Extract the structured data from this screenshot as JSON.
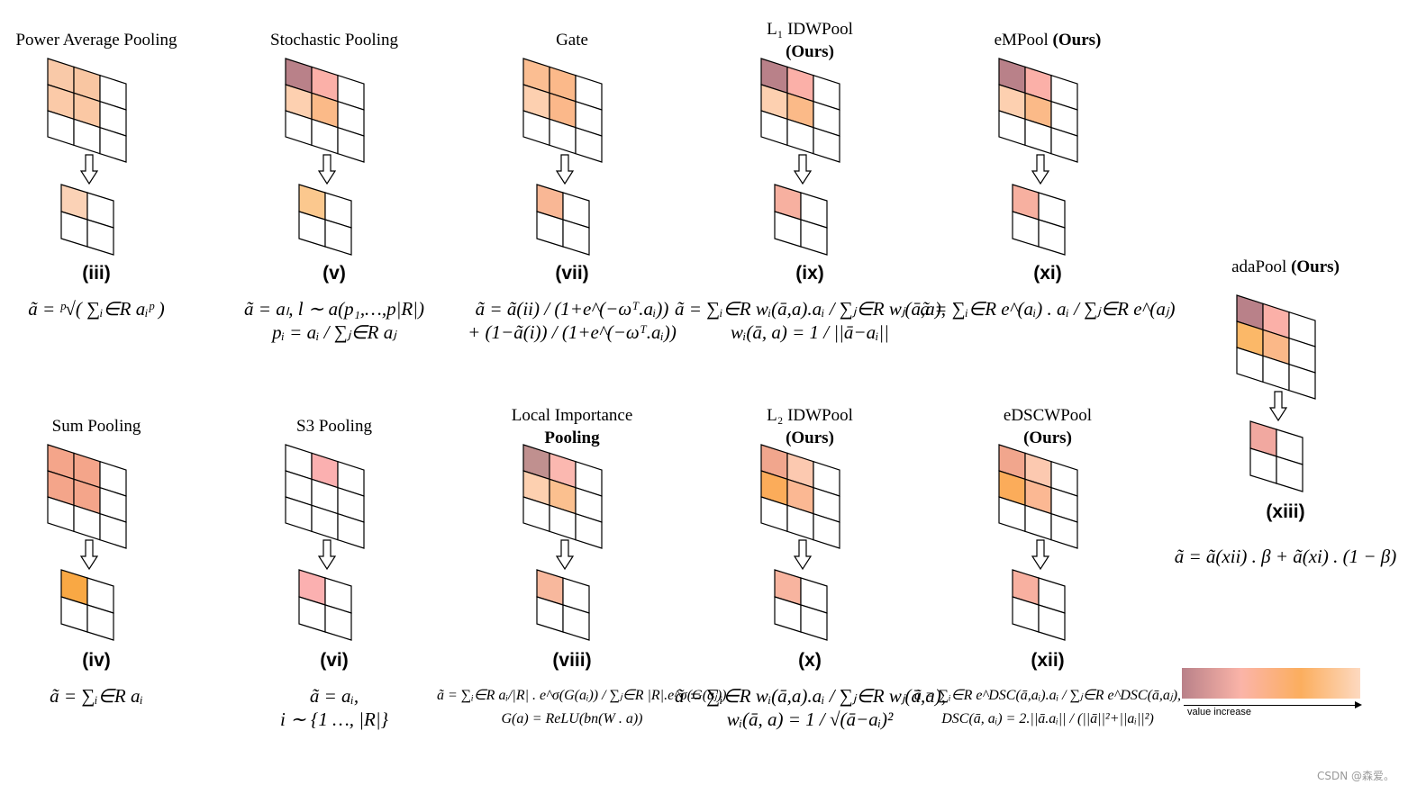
{
  "panels": [
    {
      "id": "iii",
      "title": "Power Average Pooling",
      "title2": "",
      "label": "(iii)",
      "big": [
        "#f9c9a8",
        "#f9c6a2",
        "#fff",
        "#fbcaa8",
        "#fbc8a4",
        "#fff",
        "#fff",
        "#fff",
        "#fff"
      ],
      "small": [
        "#fbd2b6",
        "#fff",
        "#fff",
        "#fff"
      ],
      "formula": [
        "ã = ᵖ√( ∑ᵢ∈R aᵢᵖ )"
      ]
    },
    {
      "id": "v",
      "title": "Stochastic Pooling",
      "title2": "",
      "label": "(v)",
      "big": [
        "#b98189",
        "#fbb0a8",
        "#fff",
        "#fdd0b0",
        "#fbba88",
        "#fff",
        "#fff",
        "#fff",
        "#fff"
      ],
      "small": [
        "#fbc88e",
        "#fff",
        "#fff",
        "#fff"
      ],
      "formula": [
        "ã = aₗ,  l ∼ a(p₁,…,p|R|)",
        "pᵢ = aᵢ / ∑ⱼ∈R aⱼ"
      ]
    },
    {
      "id": "vii",
      "title": "Gate",
      "title2": "",
      "label": "(vii)",
      "big": [
        "#fbbe92",
        "#fbb98a",
        "#fff",
        "#fdd0b0",
        "#fbb88a",
        "#fff",
        "#fff",
        "#fff",
        "#fff"
      ],
      "small": [
        "#f9b795",
        "#fff",
        "#fff",
        "#fff"
      ],
      "formula": [
        "ã = ã(ii) / (1+e^(−ωᵀ.aᵢ))",
        "+ (1−ã(i)) / (1+e^(−ωᵀ.aᵢ))"
      ]
    },
    {
      "id": "ix",
      "title": "L₁ IDWPool",
      "title2": "(Ours)",
      "label": "(ix)",
      "big": [
        "#b98189",
        "#fbb0a8",
        "#fff",
        "#fdd0b0",
        "#fbba88",
        "#fff",
        "#fff",
        "#fff",
        "#fff"
      ],
      "small": [
        "#f7b0a0",
        "#fff",
        "#fff",
        "#fff"
      ],
      "formula": [
        "ã = ∑ᵢ∈R wᵢ(ā,a).aᵢ / ∑ⱼ∈R wⱼ(ā,a),",
        "wᵢ(ā, a) = 1 / ||ā−aᵢ||"
      ]
    },
    {
      "id": "xi",
      "title": "eMPool",
      "title2": "(Ours)",
      "title_inline": true,
      "label": "(xi)",
      "big": [
        "#b98189",
        "#fbb0a8",
        "#fff",
        "#fdd0b0",
        "#fbba88",
        "#fff",
        "#fff",
        "#fff",
        "#fff"
      ],
      "small": [
        "#f7b0a0",
        "#fff",
        "#fff",
        "#fff"
      ],
      "formula": [
        "ã = ∑ᵢ∈R e^(aᵢ) . aᵢ / ∑ⱼ∈R e^(aⱼ)"
      ]
    },
    {
      "id": "iv",
      "title": "Sum Pooling",
      "title2": "",
      "label": "(iv)",
      "big": [
        "#f4a58a",
        "#f4a58a",
        "#fff",
        "#f4a58a",
        "#f4a58a",
        "#fff",
        "#fff",
        "#fff",
        "#fff"
      ],
      "small": [
        "#f9a844",
        "#fff",
        "#fff",
        "#fff"
      ],
      "formula": [
        "ã = ∑ᵢ∈R aᵢ"
      ]
    },
    {
      "id": "vi",
      "title": "S3 Pooling",
      "title2": "",
      "label": "(vi)",
      "big": [
        "#fff",
        "#fbb0b0",
        "#fff",
        "#fff",
        "#fff",
        "#fff",
        "#fff",
        "#fff",
        "#fff"
      ],
      "small": [
        "#fbb0b0",
        "#fff",
        "#fff",
        "#fff"
      ],
      "formula": [
        "ã = aᵢ,",
        "i ∼ {1 …, |R|}"
      ]
    },
    {
      "id": "viii",
      "title": "Local Importance",
      "title2": "Pooling",
      "label": "(viii)",
      "big": [
        "#c0908f",
        "#fbb8b0",
        "#fff",
        "#fdd0b0",
        "#fbc08f",
        "#fff",
        "#fff",
        "#fff",
        "#fff"
      ],
      "small": [
        "#f8b89d",
        "#fff",
        "#fff",
        "#fff"
      ],
      "formula": [
        "ã = ∑ᵢ∈R aᵢ/|R| . e^σ(G(aᵢ)) / ∑ⱼ∈R |R|.e^σ(G(aⱼ))",
        "G(a) = ReLU(bn(W . a))"
      ]
    },
    {
      "id": "x",
      "title": "L₂ IDWPool",
      "title2": "(Ours)",
      "label": "(x)",
      "big": [
        "#f1a68d",
        "#fcc9b0",
        "#fff",
        "#fbac5a",
        "#fbb893",
        "#fff",
        "#fff",
        "#fff",
        "#fff"
      ],
      "small": [
        "#f8b49f",
        "#fff",
        "#fff",
        "#fff"
      ],
      "formula": [
        "ã = ∑ᵢ∈R wᵢ(ā,a).aᵢ / ∑ⱼ∈R wⱼ(ā,a),",
        "wᵢ(ā, a) = 1 / √(ā−aᵢ)²"
      ]
    },
    {
      "id": "xii",
      "title": "eDSCWPool",
      "title2": "(Ours)",
      "label": "(xii)",
      "big": [
        "#f1a68d",
        "#fcc9b0",
        "#fff",
        "#fbac5a",
        "#fbb893",
        "#fff",
        "#fff",
        "#fff",
        "#fff"
      ],
      "small": [
        "#f8b0a0",
        "#fff",
        "#fff",
        "#fff"
      ],
      "formula": [
        "ã = ∑ᵢ∈R e^DSC(ā,aᵢ).aᵢ / ∑ⱼ∈R e^DSC(ā,aⱼ),",
        "DSC(ā, aᵢ) = 2.||ā.aᵢ|| / (||ā||²+||aᵢ||²)"
      ]
    },
    {
      "id": "xiii",
      "title": "adaPool",
      "title2": "(Ours)",
      "title_inline": true,
      "label": "(xiii)",
      "big": [
        "#b98189",
        "#fbb0a8",
        "#fff",
        "#fbb868",
        "#fbb888",
        "#fff",
        "#fff",
        "#fff",
        "#fff"
      ],
      "small": [
        "#f1a8a0",
        "#fff",
        "#fff",
        "#fff"
      ],
      "formula": [
        "ã = ã(xii) . β + ã(xi) . (1 − β)"
      ]
    }
  ],
  "legend": {
    "label": "value increase",
    "gradient": [
      "#b98189",
      "#fbb4a8",
      "#fbae5e",
      "#fdd9c0"
    ]
  },
  "watermark": "CSDN @森爱。"
}
